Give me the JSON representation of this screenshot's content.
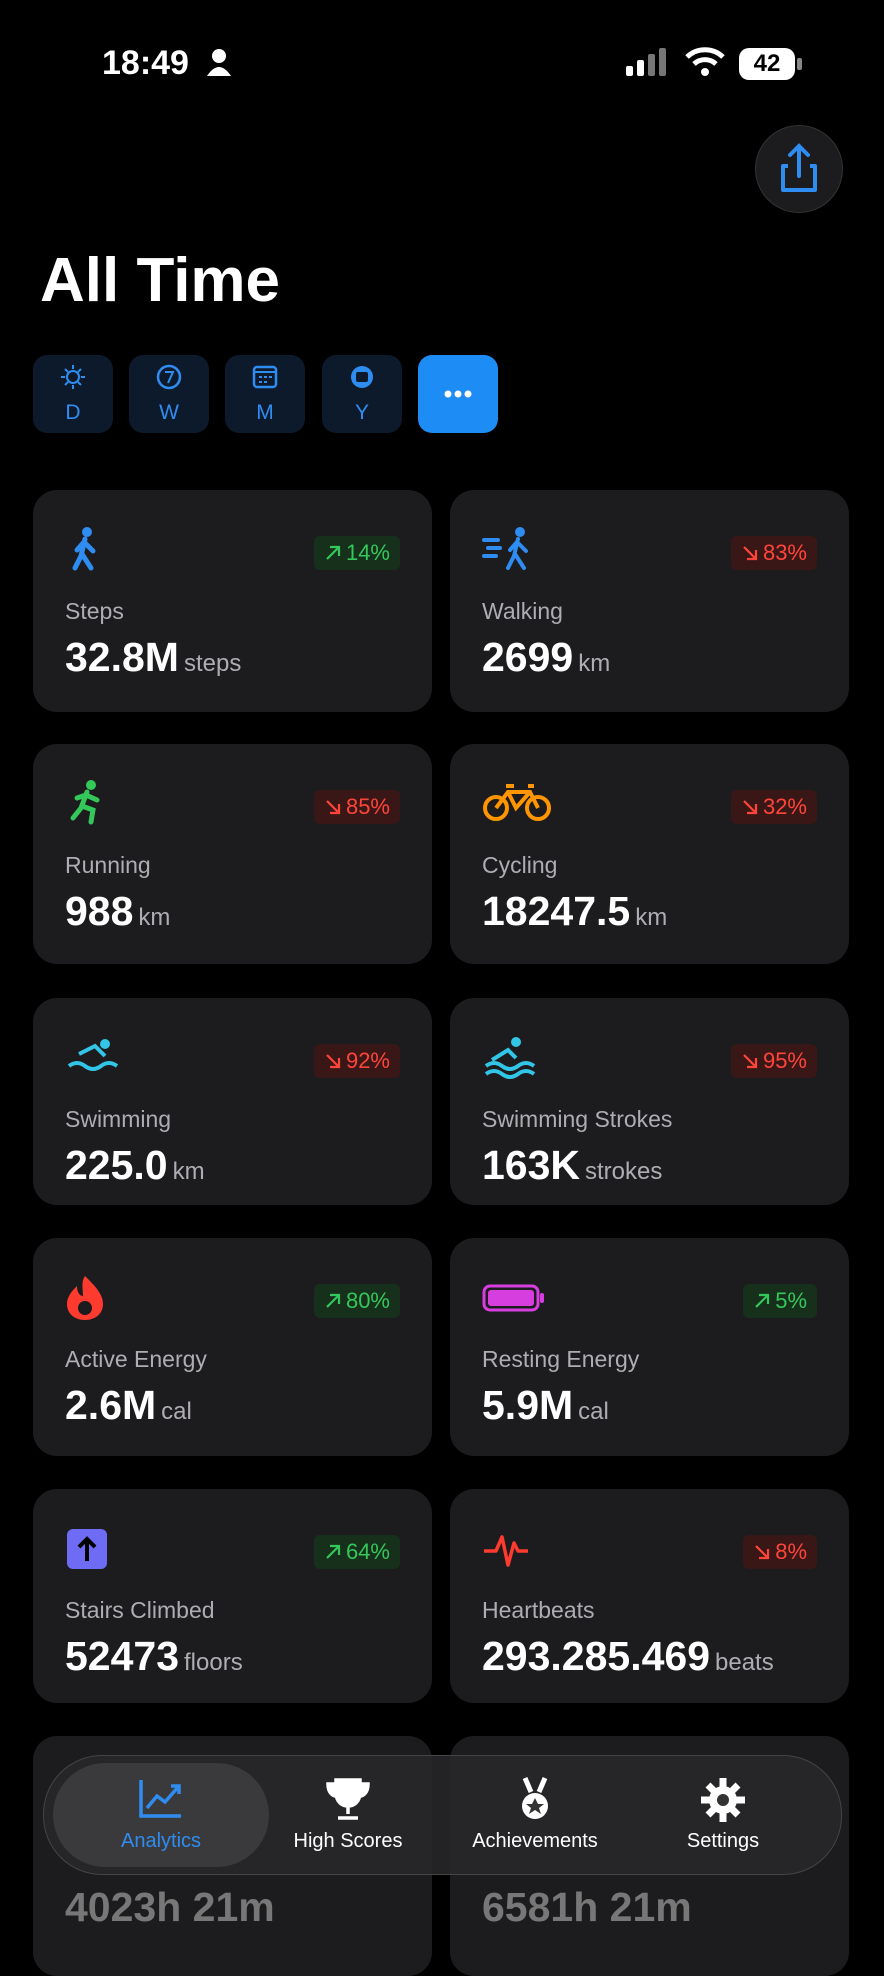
{
  "status": {
    "time": "18:49",
    "battery": "42"
  },
  "header": {
    "title": "All Time"
  },
  "filters": [
    "D",
    "W",
    "M",
    "Y"
  ],
  "cards": [
    {
      "label": "Steps",
      "value": "32.8M",
      "unit": "steps",
      "change": "14%",
      "trend": "up",
      "color": "#2f8cf0"
    },
    {
      "label": "Walking",
      "value": "2699",
      "unit": "km",
      "change": "83%",
      "trend": "down",
      "color": "#2f8cf0"
    },
    {
      "label": "Running",
      "value": "988",
      "unit": "km",
      "change": "85%",
      "trend": "down",
      "color": "#34c759"
    },
    {
      "label": "Cycling",
      "value": "18247.5",
      "unit": "km",
      "change": "32%",
      "trend": "down",
      "color": "#ff9500"
    },
    {
      "label": "Swimming",
      "value": "225.0",
      "unit": "km",
      "change": "92%",
      "trend": "down",
      "color": "#32c5e8"
    },
    {
      "label": "Swimming Strokes",
      "value": "163K",
      "unit": "strokes",
      "change": "95%",
      "trend": "down",
      "color": "#32c5e8"
    },
    {
      "label": "Active Energy",
      "value": "2.6M",
      "unit": "cal",
      "change": "80%",
      "trend": "up",
      "color": "#ff3b30"
    },
    {
      "label": "Resting Energy",
      "value": "5.9M",
      "unit": "cal",
      "change": "5%",
      "trend": "up",
      "color": "#d63ee0"
    },
    {
      "label": "Stairs Climbed",
      "value": "52473",
      "unit": "floors",
      "change": "64%",
      "trend": "up",
      "color": "#6e6cf5"
    },
    {
      "label": "Heartbeats",
      "value": "293.285.469",
      "unit": "beats",
      "change": "8%",
      "trend": "down",
      "color": "#ff3b30"
    }
  ],
  "partial_cards": [
    {
      "value": "4023h 21m"
    },
    {
      "value": "6581h 21m"
    }
  ],
  "tabs": [
    "Analytics",
    "High Scores",
    "Achievements",
    "Settings"
  ]
}
